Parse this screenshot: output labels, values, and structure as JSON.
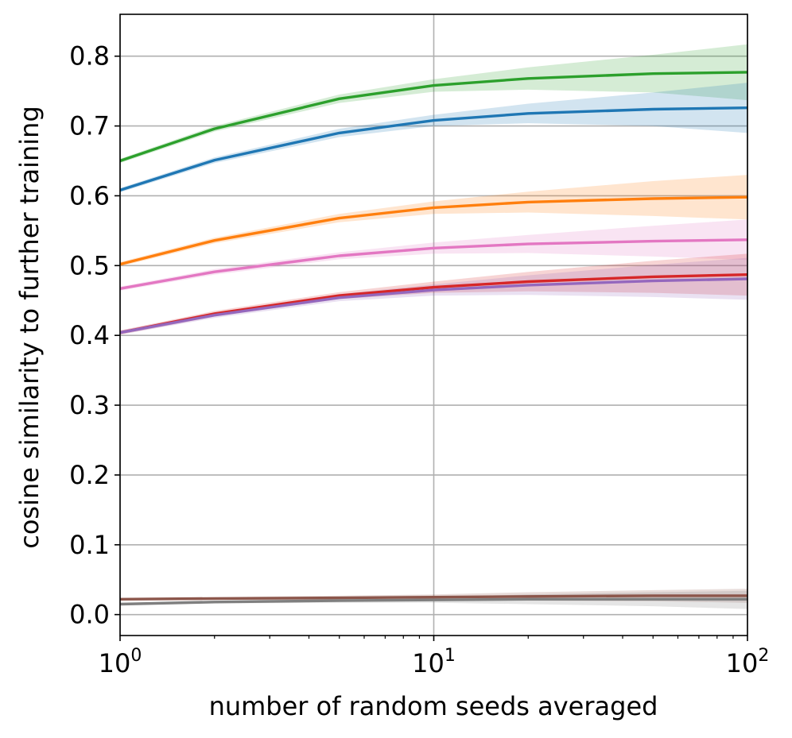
{
  "chart_data": {
    "type": "line",
    "title": "",
    "xlabel": "number of random seeds averaged",
    "ylabel": "cosine similarity to further training",
    "xscale": "log",
    "xlim": [
      1,
      100
    ],
    "ylim": [
      -0.03,
      0.86
    ],
    "x_ticks": [
      {
        "base": "10",
        "exp": "0",
        "value": 1
      },
      {
        "base": "10",
        "exp": "1",
        "value": 10
      },
      {
        "base": "10",
        "exp": "2",
        "value": 100
      }
    ],
    "y_ticks": [
      "0.0",
      "0.1",
      "0.2",
      "0.3",
      "0.4",
      "0.5",
      "0.6",
      "0.7",
      "0.8"
    ],
    "grid": true,
    "x": [
      1,
      2,
      5,
      10,
      20,
      50,
      100
    ],
    "series": [
      {
        "name": "green",
        "color": "#2ca02c",
        "values": [
          0.65,
          0.696,
          0.739,
          0.758,
          0.768,
          0.775,
          0.777
        ],
        "lower": [
          0.647,
          0.692,
          0.733,
          0.749,
          0.752,
          0.748,
          0.737
        ],
        "upper": [
          0.653,
          0.7,
          0.745,
          0.767,
          0.784,
          0.802,
          0.817
        ]
      },
      {
        "name": "blue",
        "color": "#1f77b4",
        "values": [
          0.608,
          0.651,
          0.69,
          0.708,
          0.718,
          0.724,
          0.726
        ],
        "lower": [
          0.605,
          0.647,
          0.684,
          0.7,
          0.704,
          0.7,
          0.69
        ],
        "upper": [
          0.611,
          0.655,
          0.696,
          0.716,
          0.732,
          0.748,
          0.762
        ]
      },
      {
        "name": "orange",
        "color": "#ff7f0e",
        "values": [
          0.502,
          0.536,
          0.568,
          0.583,
          0.591,
          0.596,
          0.598
        ],
        "lower": [
          0.499,
          0.532,
          0.562,
          0.574,
          0.576,
          0.571,
          0.566
        ],
        "upper": [
          0.505,
          0.54,
          0.574,
          0.592,
          0.606,
          0.621,
          0.63
        ]
      },
      {
        "name": "pink",
        "color": "#e377c2",
        "values": [
          0.467,
          0.491,
          0.514,
          0.525,
          0.531,
          0.535,
          0.537
        ],
        "lower": [
          0.464,
          0.487,
          0.509,
          0.517,
          0.518,
          0.513,
          0.508
        ],
        "upper": [
          0.47,
          0.495,
          0.519,
          0.533,
          0.544,
          0.557,
          0.566
        ]
      },
      {
        "name": "red",
        "color": "#d62728",
        "values": [
          0.404,
          0.431,
          0.457,
          0.469,
          0.477,
          0.484,
          0.487
        ],
        "lower": [
          0.401,
          0.427,
          0.452,
          0.461,
          0.463,
          0.461,
          0.457
        ],
        "upper": [
          0.407,
          0.435,
          0.462,
          0.477,
          0.491,
          0.507,
          0.517
        ]
      },
      {
        "name": "purple",
        "color": "#9467bd",
        "values": [
          0.404,
          0.429,
          0.454,
          0.465,
          0.472,
          0.478,
          0.481
        ],
        "lower": [
          0.401,
          0.425,
          0.449,
          0.457,
          0.458,
          0.455,
          0.451
        ],
        "upper": [
          0.407,
          0.433,
          0.459,
          0.473,
          0.486,
          0.501,
          0.511
        ]
      },
      {
        "name": "brown",
        "color": "#8c564b",
        "values": [
          0.022,
          0.023,
          0.024,
          0.025,
          0.026,
          0.027,
          0.027
        ],
        "lower": [
          0.021,
          0.021,
          0.021,
          0.021,
          0.02,
          0.019,
          0.017
        ],
        "upper": [
          0.023,
          0.025,
          0.027,
          0.029,
          0.032,
          0.035,
          0.037
        ]
      },
      {
        "name": "gray",
        "color": "#7f7f7f",
        "values": [
          0.015,
          0.018,
          0.02,
          0.021,
          0.022,
          0.022,
          0.022
        ],
        "lower": [
          0.014,
          0.016,
          0.017,
          0.017,
          0.015,
          0.012,
          0.008
        ],
        "upper": [
          0.016,
          0.02,
          0.023,
          0.025,
          0.029,
          0.032,
          0.034
        ]
      }
    ]
  }
}
